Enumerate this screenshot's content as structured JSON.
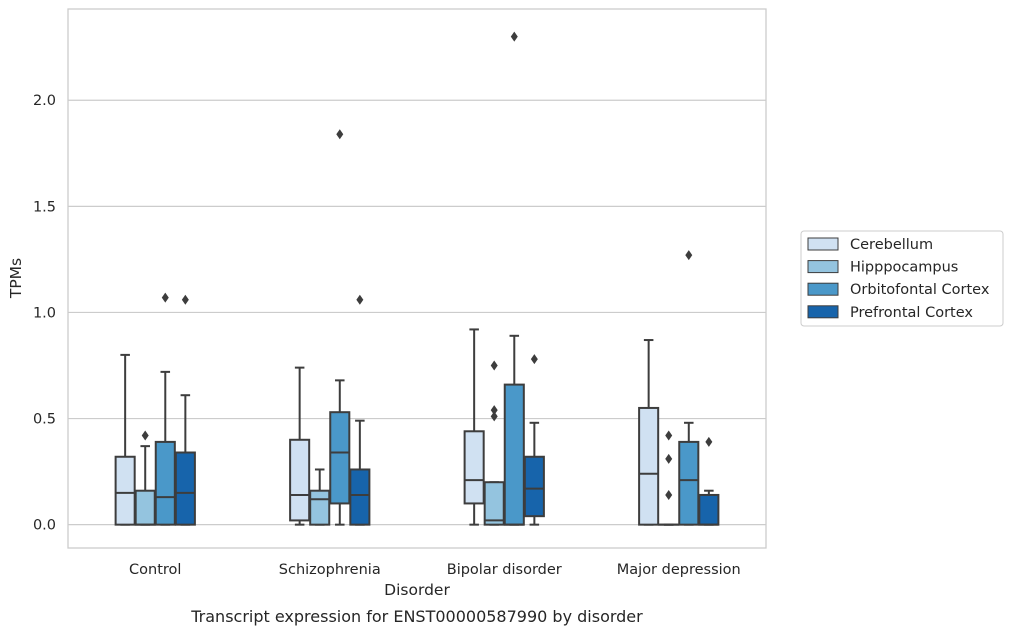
{
  "chart_data": {
    "type": "box",
    "xlabel": "Disorder",
    "ylabel": "TPMs",
    "caption": "Transcript expression for ENST00000587990 by disorder",
    "ylim": [
      -0.11,
      2.43
    ],
    "yticks": [
      "0.0",
      "0.5",
      "1.0",
      "1.5",
      "2.0"
    ],
    "grid": "horizontal",
    "legend_position": "right",
    "categories": [
      "Control",
      "Schizophrenia",
      "Bipolar disorder",
      "Major depression"
    ],
    "series": [
      {
        "name": "Cerebellum",
        "color": "#d0e1f2",
        "boxes": [
          {
            "whisker_low": 0.0,
            "q1": 0.0,
            "median": 0.15,
            "q3": 0.32,
            "whisker_high": 0.8,
            "outliers": []
          },
          {
            "whisker_low": 0.0,
            "q1": 0.02,
            "median": 0.14,
            "q3": 0.4,
            "whisker_high": 0.74,
            "outliers": []
          },
          {
            "whisker_low": 0.0,
            "q1": 0.1,
            "median": 0.21,
            "q3": 0.44,
            "whisker_high": 0.92,
            "outliers": []
          },
          {
            "whisker_low": 0.0,
            "q1": 0.0,
            "median": 0.24,
            "q3": 0.55,
            "whisker_high": 0.87,
            "outliers": []
          }
        ]
      },
      {
        "name": "Hipppocampus",
        "color": "#94c4df",
        "boxes": [
          {
            "whisker_low": 0.0,
            "q1": 0.0,
            "median": 0.0,
            "q3": 0.16,
            "whisker_high": 0.37,
            "outliers": [
              0.42
            ]
          },
          {
            "whisker_low": 0.0,
            "q1": 0.0,
            "median": 0.12,
            "q3": 0.16,
            "whisker_high": 0.26,
            "outliers": []
          },
          {
            "whisker_low": 0.0,
            "q1": 0.0,
            "median": 0.02,
            "q3": 0.2,
            "whisker_high": 0.2,
            "outliers": [
              0.51,
              0.54,
              0.75
            ]
          },
          {
            "whisker_low": 0.0,
            "q1": 0.0,
            "median": 0.0,
            "q3": 0.0,
            "whisker_high": 0.0,
            "outliers": [
              0.14,
              0.31,
              0.42
            ]
          }
        ]
      },
      {
        "name": "Orbitofontal Cortex",
        "color": "#4a98c9",
        "boxes": [
          {
            "whisker_low": 0.0,
            "q1": 0.0,
            "median": 0.13,
            "q3": 0.39,
            "whisker_high": 0.72,
            "outliers": [
              1.07
            ]
          },
          {
            "whisker_low": 0.0,
            "q1": 0.1,
            "median": 0.34,
            "q3": 0.53,
            "whisker_high": 0.68,
            "outliers": [
              1.84
            ]
          },
          {
            "whisker_low": 0.0,
            "q1": 0.0,
            "median": 0.0,
            "q3": 0.66,
            "whisker_high": 0.89,
            "outliers": [
              2.3
            ]
          },
          {
            "whisker_low": 0.0,
            "q1": 0.0,
            "median": 0.21,
            "q3": 0.39,
            "whisker_high": 0.48,
            "outliers": [
              1.27
            ]
          }
        ]
      },
      {
        "name": "Prefrontal Cortex",
        "color": "#1764ab",
        "boxes": [
          {
            "whisker_low": 0.0,
            "q1": 0.0,
            "median": 0.15,
            "q3": 0.34,
            "whisker_high": 0.61,
            "outliers": [
              1.06
            ]
          },
          {
            "whisker_low": 0.0,
            "q1": 0.0,
            "median": 0.14,
            "q3": 0.26,
            "whisker_high": 0.49,
            "outliers": [
              1.06
            ]
          },
          {
            "whisker_low": 0.0,
            "q1": 0.04,
            "median": 0.17,
            "q3": 0.32,
            "whisker_high": 0.48,
            "outliers": [
              0.78
            ]
          },
          {
            "whisker_low": 0.0,
            "q1": 0.0,
            "median": 0.0,
            "q3": 0.14,
            "whisker_high": 0.16,
            "outliers": [
              0.39
            ]
          }
        ]
      }
    ]
  }
}
